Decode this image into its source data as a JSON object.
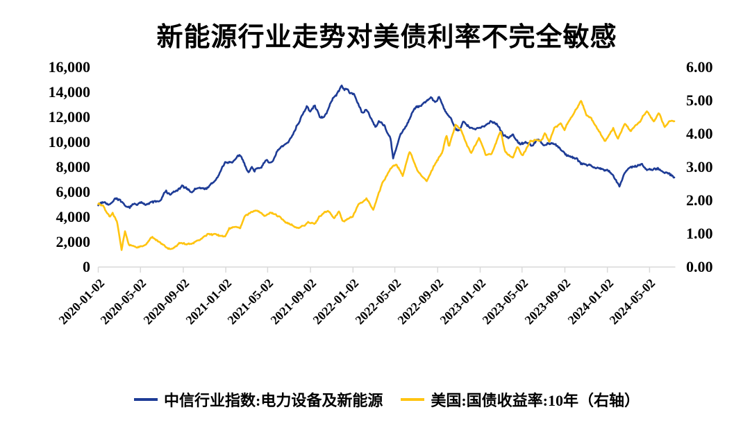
{
  "chart_data": {
    "type": "line",
    "title": "新能源行业走势对美债利率不完全敏感",
    "grid": false,
    "legend_position": "bottom",
    "axis_color": "#d9d9d9",
    "text_color": "#000000",
    "x_start": "2020-01-02",
    "x_end": "2024-07-15",
    "x_tick_labels": [
      "2020-01-02",
      "2020-05-02",
      "2020-09-02",
      "2021-01-02",
      "2021-05-02",
      "2021-09-02",
      "2022-01-02",
      "2022-05-02",
      "2022-09-02",
      "2023-01-02",
      "2023-05-02",
      "2023-09-02",
      "2024-01-02",
      "2024-05-02"
    ],
    "left_axis": {
      "min": 0,
      "max": 16000,
      "tick_labels": [
        "16,000",
        "14,000",
        "12,000",
        "10,000",
        "8,000",
        "6,000",
        "4,000",
        "2,000",
        "0"
      ]
    },
    "right_axis": {
      "min": 0,
      "max": 6,
      "tick_labels": [
        "6.00",
        "5.00",
        "4.00",
        "3.00",
        "2.00",
        "1.00",
        "0.00"
      ]
    },
    "series": [
      {
        "id": "citic-index",
        "name": "中信行业指数:电力设备及新能源",
        "axis": "left",
        "color": "#1e3c96",
        "noise": 80,
        "keyframes": [
          [
            "2020-01-02",
            5050
          ],
          [
            "2020-01-23",
            5280
          ],
          [
            "2020-02-04",
            5020
          ],
          [
            "2020-02-21",
            5600
          ],
          [
            "2020-03-05",
            5350
          ],
          [
            "2020-03-23",
            4640
          ],
          [
            "2020-04-15",
            5000
          ],
          [
            "2020-05-08",
            5120
          ],
          [
            "2020-06-01",
            5150
          ],
          [
            "2020-06-30",
            5330
          ],
          [
            "2020-07-14",
            6100
          ],
          [
            "2020-07-24",
            5780
          ],
          [
            "2020-08-18",
            6150
          ],
          [
            "2020-09-01",
            6400
          ],
          [
            "2020-09-25",
            6050
          ],
          [
            "2020-10-13",
            6350
          ],
          [
            "2020-10-30",
            6250
          ],
          [
            "2020-11-20",
            6550
          ],
          [
            "2020-12-01",
            6850
          ],
          [
            "2020-12-31",
            8300
          ],
          [
            "2021-01-25",
            8500
          ],
          [
            "2021-02-10",
            8900
          ],
          [
            "2021-02-26",
            8200
          ],
          [
            "2021-03-09",
            7650
          ],
          [
            "2021-03-18",
            8000
          ],
          [
            "2021-03-25",
            7800
          ],
          [
            "2021-04-15",
            8150
          ],
          [
            "2021-04-30",
            8500
          ],
          [
            "2021-05-10",
            8350
          ],
          [
            "2021-05-25",
            8900
          ],
          [
            "2021-06-01",
            9300
          ],
          [
            "2021-06-18",
            9700
          ],
          [
            "2021-07-01",
            9900
          ],
          [
            "2021-07-23",
            11300
          ],
          [
            "2021-07-30",
            11600
          ],
          [
            "2021-08-10",
            12300
          ],
          [
            "2021-08-23",
            12800
          ],
          [
            "2021-09-01",
            12400
          ],
          [
            "2021-09-14",
            12900
          ],
          [
            "2021-09-29",
            12100
          ],
          [
            "2021-10-12",
            11950
          ],
          [
            "2021-10-29",
            13100
          ],
          [
            "2021-11-15",
            13800
          ],
          [
            "2021-11-30",
            14500
          ],
          [
            "2021-12-09",
            14300
          ],
          [
            "2021-12-24",
            14000
          ],
          [
            "2022-01-05",
            13900
          ],
          [
            "2022-01-28",
            12300
          ],
          [
            "2022-02-11",
            12600
          ],
          [
            "2022-02-24",
            11900
          ],
          [
            "2022-03-09",
            11250
          ],
          [
            "2022-03-17",
            11800
          ],
          [
            "2022-04-01",
            11450
          ],
          [
            "2022-04-20",
            10200
          ],
          [
            "2022-04-27",
            8650
          ],
          [
            "2022-05-17",
            10450
          ],
          [
            "2022-06-01",
            11150
          ],
          [
            "2022-06-24",
            12550
          ],
          [
            "2022-07-11",
            12850
          ],
          [
            "2022-08-02",
            13300
          ],
          [
            "2022-08-15",
            13650
          ],
          [
            "2022-08-25",
            13150
          ],
          [
            "2022-09-07",
            13500
          ],
          [
            "2022-09-23",
            12400
          ],
          [
            "2022-10-10",
            11900
          ],
          [
            "2022-10-31",
            10950
          ],
          [
            "2022-11-14",
            11650
          ],
          [
            "2022-12-01",
            11150
          ],
          [
            "2022-12-23",
            10950
          ],
          [
            "2023-01-09",
            11250
          ],
          [
            "2023-01-30",
            11750
          ],
          [
            "2023-02-15",
            11550
          ],
          [
            "2023-02-24",
            11350
          ],
          [
            "2023-03-10",
            10600
          ],
          [
            "2023-03-24",
            10350
          ],
          [
            "2023-04-07",
            10550
          ],
          [
            "2023-04-25",
            9850
          ],
          [
            "2023-05-12",
            10050
          ],
          [
            "2023-05-31",
            9700
          ],
          [
            "2023-06-16",
            10150
          ],
          [
            "2023-07-04",
            9800
          ],
          [
            "2023-07-25",
            10000
          ],
          [
            "2023-08-04",
            9850
          ],
          [
            "2023-08-25",
            9300
          ],
          [
            "2023-09-08",
            8950
          ],
          [
            "2023-09-28",
            8800
          ],
          [
            "2023-10-23",
            8300
          ],
          [
            "2023-11-10",
            8250
          ],
          [
            "2023-12-01",
            7950
          ],
          [
            "2023-12-22",
            7800
          ],
          [
            "2024-01-17",
            7500
          ],
          [
            "2024-02-05",
            6400
          ],
          [
            "2024-02-23",
            7600
          ],
          [
            "2024-03-15",
            8050
          ],
          [
            "2024-04-08",
            8200
          ],
          [
            "2024-04-26",
            7850
          ],
          [
            "2024-05-20",
            7950
          ],
          [
            "2024-06-07",
            7800
          ],
          [
            "2024-06-25",
            7550
          ],
          [
            "2024-07-12",
            7100
          ]
        ]
      },
      {
        "id": "us10y-yield",
        "name": "美国:国债收益率:10年（右轴）",
        "axis": "right",
        "color": "#ffc411",
        "noise": 0.02,
        "keyframes": [
          [
            "2020-01-02",
            1.88
          ],
          [
            "2020-01-17",
            1.82
          ],
          [
            "2020-02-03",
            1.52
          ],
          [
            "2020-02-12",
            1.63
          ],
          [
            "2020-02-25",
            1.33
          ],
          [
            "2020-03-09",
            0.54
          ],
          [
            "2020-03-19",
            1.12
          ],
          [
            "2020-03-31",
            0.68
          ],
          [
            "2020-04-21",
            0.57
          ],
          [
            "2020-05-15",
            0.64
          ],
          [
            "2020-06-05",
            0.91
          ],
          [
            "2020-06-30",
            0.66
          ],
          [
            "2020-07-31",
            0.53
          ],
          [
            "2020-08-28",
            0.74
          ],
          [
            "2020-09-22",
            0.67
          ],
          [
            "2020-10-23",
            0.84
          ],
          [
            "2020-11-10",
            0.96
          ],
          [
            "2020-12-04",
            0.97
          ],
          [
            "2020-12-31",
            0.92
          ],
          [
            "2021-01-12",
            1.15
          ],
          [
            "2021-02-12",
            1.2
          ],
          [
            "2021-02-25",
            1.52
          ],
          [
            "2021-03-31",
            1.74
          ],
          [
            "2021-04-22",
            1.54
          ],
          [
            "2021-05-13",
            1.66
          ],
          [
            "2021-06-11",
            1.45
          ],
          [
            "2021-07-19",
            1.19
          ],
          [
            "2021-08-03",
            1.18
          ],
          [
            "2021-08-26",
            1.34
          ],
          [
            "2021-09-14",
            1.28
          ],
          [
            "2021-09-28",
            1.54
          ],
          [
            "2021-10-21",
            1.68
          ],
          [
            "2021-11-09",
            1.43
          ],
          [
            "2021-11-23",
            1.66
          ],
          [
            "2021-12-03",
            1.35
          ],
          [
            "2021-12-17",
            1.4
          ],
          [
            "2021-12-31",
            1.51
          ],
          [
            "2022-01-18",
            1.87
          ],
          [
            "2022-02-10",
            2.04
          ],
          [
            "2022-03-01",
            1.72
          ],
          [
            "2022-03-25",
            2.48
          ],
          [
            "2022-04-19",
            2.94
          ],
          [
            "2022-05-06",
            3.12
          ],
          [
            "2022-05-25",
            2.75
          ],
          [
            "2022-06-14",
            3.48
          ],
          [
            "2022-07-06",
            2.93
          ],
          [
            "2022-08-01",
            2.6
          ],
          [
            "2022-08-22",
            3.03
          ],
          [
            "2022-09-15",
            3.45
          ],
          [
            "2022-09-27",
            3.96
          ],
          [
            "2022-10-04",
            3.62
          ],
          [
            "2022-10-24",
            4.25
          ],
          [
            "2022-11-09",
            4.1
          ],
          [
            "2022-11-25",
            3.68
          ],
          [
            "2022-12-07",
            3.42
          ],
          [
            "2022-12-30",
            3.88
          ],
          [
            "2023-01-18",
            3.37
          ],
          [
            "2023-02-02",
            3.4
          ],
          [
            "2023-03-02",
            4.06
          ],
          [
            "2023-03-15",
            3.45
          ],
          [
            "2023-04-06",
            3.28
          ],
          [
            "2023-04-19",
            3.6
          ],
          [
            "2023-05-04",
            3.35
          ],
          [
            "2023-05-26",
            3.8
          ],
          [
            "2023-06-13",
            3.82
          ],
          [
            "2023-06-29",
            3.85
          ],
          [
            "2023-07-07",
            4.05
          ],
          [
            "2023-07-19",
            3.74
          ],
          [
            "2023-08-03",
            4.19
          ],
          [
            "2023-08-21",
            4.34
          ],
          [
            "2023-09-01",
            4.17
          ],
          [
            "2023-09-27",
            4.62
          ],
          [
            "2023-10-19",
            4.99
          ],
          [
            "2023-11-03",
            4.57
          ],
          [
            "2023-11-17",
            4.44
          ],
          [
            "2023-12-06",
            4.12
          ],
          [
            "2023-12-27",
            3.79
          ],
          [
            "2024-01-19",
            4.15
          ],
          [
            "2024-02-01",
            3.87
          ],
          [
            "2024-02-22",
            4.33
          ],
          [
            "2024-03-08",
            4.08
          ],
          [
            "2024-04-02",
            4.36
          ],
          [
            "2024-04-25",
            4.7
          ],
          [
            "2024-05-15",
            4.35
          ],
          [
            "2024-05-29",
            4.61
          ],
          [
            "2024-06-14",
            4.21
          ],
          [
            "2024-06-28",
            4.4
          ],
          [
            "2024-07-12",
            4.42
          ]
        ]
      }
    ]
  }
}
